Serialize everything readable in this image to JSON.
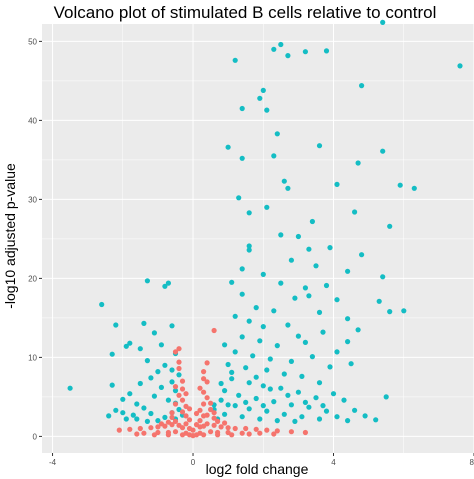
{
  "chart_data": {
    "type": "scatter",
    "title": "Volcano plot of stimulated B cells relative to control",
    "xlabel": "log2 fold change",
    "ylabel": "-log10 adjusted p-value",
    "xlim": [
      -4.3,
      8.0
    ],
    "ylim": [
      -2.1,
      52.2
    ],
    "xticks": [
      -4,
      0,
      4,
      8
    ],
    "yticks": [
      0,
      10,
      20,
      30,
      40,
      50
    ],
    "grid": true,
    "legend": "none",
    "colors": {
      "significant": "#14BDC4",
      "not_significant": "#F5746D",
      "panel": "#EBEBEB",
      "grid": "#FFFFFF"
    },
    "series": [
      {
        "color_key": "significant",
        "points": [
          [
            -3.5,
            6.1
          ],
          [
            -2.6,
            16.7
          ],
          [
            -2.2,
            14.1
          ],
          [
            -2.3,
            10.4
          ],
          [
            -1.9,
            11.4
          ],
          [
            -1.8,
            11.8
          ],
          [
            -1.3,
            19.7
          ],
          [
            -0.8,
            19.0
          ],
          [
            -0.7,
            19.4
          ],
          [
            -0.6,
            14.0
          ],
          [
            -0.9,
            11.6
          ],
          [
            -1.4,
            14.3
          ],
          [
            -1.1,
            13.1
          ],
          [
            -0.5,
            10.5
          ],
          [
            -1.5,
            11.1
          ],
          [
            -2.2,
            3.3
          ],
          [
            -1.6,
            4.1
          ],
          [
            -2.3,
            6.5
          ],
          [
            -1.2,
            7.4
          ],
          [
            -1.0,
            8.2
          ],
          [
            -0.8,
            9.0
          ],
          [
            -0.6,
            8.4
          ],
          [
            -1.3,
            9.6
          ],
          [
            -0.9,
            6.2
          ],
          [
            -0.5,
            5.8
          ],
          [
            -0.7,
            4.6
          ],
          [
            -1.1,
            5.1
          ],
          [
            -1.4,
            3.6
          ],
          [
            -1.7,
            2.7
          ],
          [
            -1.9,
            2.2
          ],
          [
            -0.6,
            3.0
          ],
          [
            -0.8,
            2.4
          ],
          [
            -1.0,
            2.0
          ],
          [
            -1.3,
            1.9
          ],
          [
            -0.5,
            2.2
          ],
          [
            -0.4,
            3.4
          ],
          [
            -0.3,
            2.7
          ],
          [
            -0.5,
            4.2
          ],
          [
            -0.6,
            6.9
          ],
          [
            -0.4,
            7.8
          ],
          [
            -1.8,
            5.4
          ],
          [
            -1.5,
            6.7
          ],
          [
            -2.0,
            4.7
          ],
          [
            -2.4,
            2.6
          ],
          [
            -2.0,
            3.0
          ],
          [
            -1.6,
            2.2
          ],
          [
            -1.2,
            2.9
          ],
          [
            5.4,
            52.4
          ],
          [
            2.5,
            49.6
          ],
          [
            2.3,
            49.0
          ],
          [
            3.2,
            48.7
          ],
          [
            3.8,
            48.8
          ],
          [
            2.7,
            48.2
          ],
          [
            1.2,
            47.6
          ],
          [
            4.8,
            44.4
          ],
          [
            7.6,
            46.9
          ],
          [
            2.0,
            43.8
          ],
          [
            1.9,
            42.8
          ],
          [
            1.4,
            41.5
          ],
          [
            2.1,
            41.3
          ],
          [
            2.4,
            38.3
          ],
          [
            3.6,
            36.8
          ],
          [
            5.4,
            36.1
          ],
          [
            1.0,
            36.6
          ],
          [
            2.3,
            35.5
          ],
          [
            4.7,
            34.6
          ],
          [
            1.4,
            35.2
          ],
          [
            2.6,
            32.3
          ],
          [
            4.1,
            31.9
          ],
          [
            6.3,
            31.4
          ],
          [
            5.9,
            31.8
          ],
          [
            1.3,
            30.2
          ],
          [
            2.7,
            31.4
          ],
          [
            2.1,
            29.0
          ],
          [
            1.6,
            28.3
          ],
          [
            3.4,
            27.2
          ],
          [
            5.6,
            26.6
          ],
          [
            4.6,
            28.4
          ],
          [
            3.0,
            25.3
          ],
          [
            2.5,
            25.5
          ],
          [
            1.6,
            24.1
          ],
          [
            3.3,
            23.7
          ],
          [
            3.9,
            23.9
          ],
          [
            4.8,
            23.0
          ],
          [
            1.6,
            23.6
          ],
          [
            2.8,
            22.3
          ],
          [
            3.5,
            21.6
          ],
          [
            4.4,
            20.9
          ],
          [
            1.4,
            21.2
          ],
          [
            5.4,
            20.2
          ],
          [
            2.0,
            20.5
          ],
          [
            2.5,
            19.4
          ],
          [
            3.2,
            18.8
          ],
          [
            3.8,
            19.1
          ],
          [
            1.1,
            19.5
          ],
          [
            1.4,
            18.0
          ],
          [
            2.9,
            17.5
          ],
          [
            3.3,
            17.8
          ],
          [
            4.1,
            17.3
          ],
          [
            5.3,
            17.1
          ],
          [
            6.0,
            15.9
          ],
          [
            5.6,
            15.8
          ],
          [
            1.8,
            16.3
          ],
          [
            2.3,
            15.9
          ],
          [
            3.6,
            15.7
          ],
          [
            4.4,
            14.9
          ],
          [
            1.2,
            15.2
          ],
          [
            1.6,
            14.6
          ],
          [
            2.0,
            13.9
          ],
          [
            2.7,
            14.1
          ],
          [
            3.0,
            12.7
          ],
          [
            3.7,
            13.2
          ],
          [
            4.7,
            13.5
          ],
          [
            1.4,
            12.6
          ],
          [
            1.9,
            12.1
          ],
          [
            2.4,
            11.5
          ],
          [
            3.2,
            11.9
          ],
          [
            4.1,
            10.7
          ],
          [
            4.4,
            12.0
          ],
          [
            0.9,
            11.6
          ],
          [
            1.2,
            10.7
          ],
          [
            1.7,
            10.2
          ],
          [
            2.2,
            9.8
          ],
          [
            2.8,
            9.5
          ],
          [
            3.4,
            10.1
          ],
          [
            3.9,
            8.8
          ],
          [
            4.5,
            9.2
          ],
          [
            1.0,
            9.1
          ],
          [
            1.5,
            8.7
          ],
          [
            2.1,
            8.4
          ],
          [
            2.6,
            7.9
          ],
          [
            3.1,
            7.6
          ],
          [
            3.6,
            6.8
          ],
          [
            4.0,
            5.4
          ],
          [
            4.3,
            4.6
          ],
          [
            5.5,
            5.0
          ],
          [
            1.1,
            7.3
          ],
          [
            1.6,
            6.8
          ],
          [
            2.0,
            6.4
          ],
          [
            2.5,
            6.1
          ],
          [
            3.0,
            5.6
          ],
          [
            3.5,
            4.9
          ],
          [
            0.9,
            5.8
          ],
          [
            1.3,
            5.2
          ],
          [
            1.8,
            4.8
          ],
          [
            2.3,
            4.4
          ],
          [
            2.8,
            4.0
          ],
          [
            3.3,
            3.7
          ],
          [
            3.8,
            3.2
          ],
          [
            0.8,
            4.6
          ],
          [
            1.2,
            3.9
          ],
          [
            1.6,
            3.5
          ],
          [
            2.1,
            3.2
          ],
          [
            2.6,
            2.8
          ],
          [
            3.1,
            2.5
          ],
          [
            3.6,
            2.2
          ],
          [
            4.1,
            2.5
          ],
          [
            0.6,
            3.4
          ],
          [
            0.9,
            2.8
          ],
          [
            1.4,
            2.5
          ],
          [
            1.9,
            2.2
          ],
          [
            2.4,
            2.0
          ],
          [
            2.9,
            1.9
          ],
          [
            0.7,
            2.2
          ],
          [
            0.6,
            4.0
          ],
          [
            0.8,
            6.7
          ],
          [
            1.1,
            8.1
          ],
          [
            1.8,
            7.5
          ],
          [
            2.2,
            6.0
          ],
          [
            2.7,
            5.2
          ],
          [
            3.2,
            4.3
          ],
          [
            3.7,
            3.9
          ],
          [
            4.6,
            3.3
          ],
          [
            4.9,
            2.6
          ],
          [
            5.2,
            2.1
          ],
          [
            4.4,
            2.0
          ],
          [
            1.5,
            4.3
          ],
          [
            2.0,
            3.9
          ],
          [
            1.0,
            4.0
          ]
        ]
      },
      {
        "color_key": "not_significant",
        "points": [
          [
            -0.4,
            11.1
          ],
          [
            -0.5,
            10.7
          ],
          [
            0.6,
            13.4
          ],
          [
            -0.4,
            8.6
          ],
          [
            -0.3,
            7.0
          ],
          [
            -0.5,
            6.3
          ],
          [
            -0.4,
            5.2
          ],
          [
            -0.3,
            4.6
          ],
          [
            -0.2,
            3.8
          ],
          [
            -0.3,
            3.1
          ],
          [
            -0.2,
            2.6
          ],
          [
            -0.1,
            2.1
          ],
          [
            0.3,
            8.2
          ],
          [
            0.4,
            6.9
          ],
          [
            0.3,
            5.6
          ],
          [
            0.4,
            4.9
          ],
          [
            0.3,
            4.1
          ],
          [
            0.2,
            3.3
          ],
          [
            0.3,
            2.6
          ],
          [
            0.2,
            2.0
          ],
          [
            0.5,
            3.4
          ],
          [
            0.4,
            2.7
          ],
          [
            0.6,
            2.3
          ],
          [
            -0.6,
            2.4
          ],
          [
            -0.5,
            1.9
          ],
          [
            -0.2,
            1.6
          ],
          [
            0.1,
            1.5
          ],
          [
            0.2,
            1.2
          ],
          [
            -0.1,
            1.0
          ],
          [
            0.0,
            0.8
          ],
          [
            -0.3,
            1.1
          ],
          [
            0.3,
            1.3
          ],
          [
            -0.4,
            1.4
          ],
          [
            0.4,
            1.6
          ],
          [
            -0.6,
            1.5
          ],
          [
            0.6,
            1.4
          ],
          [
            -0.8,
            1.3
          ],
          [
            0.8,
            1.2
          ],
          [
            -1.0,
            1.2
          ],
          [
            1.0,
            1.1
          ],
          [
            -1.2,
            1.1
          ],
          [
            1.2,
            1.0
          ],
          [
            -1.5,
            1.0
          ],
          [
            1.5,
            1.0
          ],
          [
            -1.8,
            0.9
          ],
          [
            1.8,
            0.9
          ],
          [
            -2.1,
            0.8
          ],
          [
            2.1,
            0.8
          ],
          [
            2.4,
            0.7
          ],
          [
            2.8,
            0.6
          ],
          [
            3.2,
            0.5
          ],
          [
            -0.2,
            0.4
          ],
          [
            0.2,
            0.4
          ],
          [
            -0.5,
            0.6
          ],
          [
            0.5,
            0.6
          ],
          [
            -0.7,
            0.5
          ],
          [
            0.7,
            0.5
          ],
          [
            -1.0,
            0.5
          ],
          [
            1.0,
            0.5
          ],
          [
            -1.4,
            0.4
          ],
          [
            1.4,
            0.4
          ],
          [
            -0.1,
            0.2
          ],
          [
            0.1,
            0.2
          ],
          [
            -0.3,
            0.2
          ],
          [
            0.3,
            0.2
          ],
          [
            0.0,
            0.1
          ],
          [
            -0.7,
            0.2
          ],
          [
            0.7,
            0.2
          ],
          [
            -1.1,
            0.2
          ],
          [
            1.1,
            0.2
          ],
          [
            -1.6,
            0.3
          ],
          [
            1.6,
            0.3
          ],
          [
            1.9,
            0.4
          ],
          [
            2.3,
            0.3
          ],
          [
            -0.2,
            5.4
          ],
          [
            -0.3,
            6.0
          ],
          [
            0.2,
            6.1
          ],
          [
            0.3,
            7.3
          ],
          [
            -0.4,
            9.4
          ],
          [
            0.4,
            9.3
          ],
          [
            -0.6,
            3.0
          ],
          [
            0.6,
            3.0
          ],
          [
            -0.5,
            4.1
          ],
          [
            0.5,
            4.2
          ],
          [
            -0.1,
            3.5
          ],
          [
            0.1,
            2.9
          ],
          [
            -0.7,
            1.8
          ],
          [
            0.7,
            1.9
          ],
          [
            -0.9,
            1.6
          ],
          [
            0.9,
            1.7
          ]
        ]
      }
    ]
  }
}
